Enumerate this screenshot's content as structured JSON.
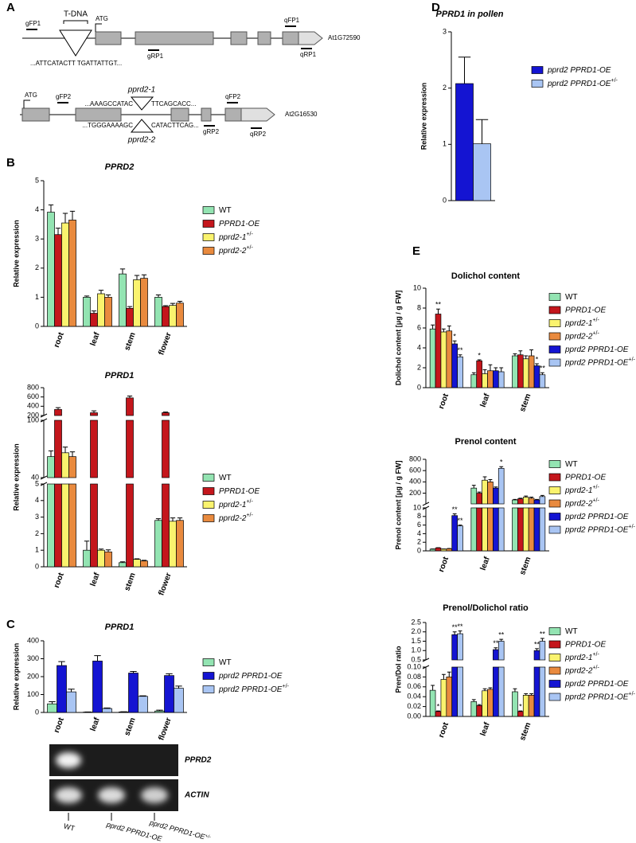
{
  "panels": [
    "A",
    "B",
    "C",
    "D",
    "E"
  ],
  "diagram": {
    "gene1": {
      "id": "At1G72590",
      "insert": "T-DNA",
      "atg": "ATG",
      "primers": [
        "gFP1",
        "gRP1",
        "qFP1",
        "qRP1"
      ],
      "sequence": "...ATTCATACTT  TGATTATTGT..."
    },
    "gene2": {
      "id": "At2G16530",
      "atg": "ATG",
      "primers": [
        "gFP2",
        "gRP2",
        "qFP2",
        "qRP2"
      ],
      "allele1": "pprd2-1",
      "allele2": "pprd2-2",
      "seq1_left": "...AAAGCCATAC",
      "seq1_right": "TTCAGCACC...",
      "seq2_left": "...TGGGAAAAGC",
      "seq2_right": "CATACTTCAG..."
    }
  },
  "gel": {
    "bands": [
      "PPRD2",
      "ACTIN"
    ],
    "lanes": [
      {
        "name": "WT"
      },
      {
        "name": "pprd2 PPRD1-OE"
      },
      {
        "name": "pprd2 PPRD1-OE",
        "name_sup": "+/-"
      }
    ]
  },
  "chart_data": [
    {
      "type": "bar",
      "panel": "B",
      "title": "PPRD2",
      "title_italic": true,
      "ylabel": "Relative expression",
      "categories": [
        "root",
        "leaf",
        "stem",
        "flower"
      ],
      "ylim": [
        0,
        5
      ],
      "yticks": [
        0,
        1,
        2,
        3,
        4,
        5
      ],
      "series": [
        {
          "name": "WT",
          "color": "#93e4b2",
          "values": [
            3.92,
            1.0,
            1.8,
            1.0
          ],
          "errors": [
            0.25,
            0.04,
            0.17,
            0.08
          ]
        },
        {
          "name": "PPRD1-OE",
          "italic": true,
          "color": "#c4161c",
          "values": [
            3.15,
            0.45,
            0.62,
            0.68
          ],
          "errors": [
            0.22,
            0.08,
            0.06,
            0.03
          ]
        },
        {
          "name": "pprd2-1",
          "name_sup": "+/-",
          "italic": true,
          "color": "#faf36e",
          "values": [
            3.55,
            1.12,
            1.6,
            0.72
          ],
          "errors": [
            0.33,
            0.12,
            0.15,
            0.07
          ]
        },
        {
          "name": "pprd2-2",
          "name_sup": "+/-",
          "italic": true,
          "color": "#e98a3e",
          "values": [
            3.65,
            1.0,
            1.65,
            0.8
          ],
          "errors": [
            0.3,
            0.08,
            0.12,
            0.06
          ]
        }
      ]
    },
    {
      "type": "bar",
      "title": "PPRD1",
      "title_italic": true,
      "ylabel": "Relative expression",
      "categories": [
        "root",
        "leaf",
        "stem",
        "flower"
      ],
      "ylim": [
        [
          0,
          5
        ],
        [
          40,
          100
        ],
        [
          200,
          800
        ]
      ],
      "yticks": [
        0,
        1,
        2,
        3,
        4,
        5,
        40,
        100,
        200,
        400,
        600,
        800
      ],
      "series": [
        {
          "name": "WT",
          "color": "#93e4b2",
          "values": [
            62,
            1.0,
            0.25,
            2.8
          ],
          "errors": [
            6,
            0.55,
            0.05,
            0.1
          ]
        },
        {
          "name": "PPRD1-OE",
          "italic": true,
          "color": "#c4161c",
          "values": [
            330,
            260,
            580,
            260
          ],
          "errors": [
            40,
            40,
            40,
            15
          ]
        },
        {
          "name": "pprd2-1",
          "name_sup": "+/-",
          "italic": true,
          "color": "#faf36e",
          "values": [
            66,
            1.0,
            0.45,
            2.75
          ],
          "errors": [
            6,
            0.07,
            0.03,
            0.2
          ]
        },
        {
          "name": "pprd2-2",
          "name_sup": "+/-",
          "italic": true,
          "color": "#e98a3e",
          "values": [
            62,
            0.9,
            0.35,
            2.8
          ],
          "errors": [
            5,
            0.12,
            0.04,
            0.15
          ]
        }
      ]
    },
    {
      "type": "bar",
      "panel": "C",
      "title": "PPRD1",
      "title_italic": true,
      "ylabel": "Relative expression",
      "categories": [
        "root",
        "leaf",
        "stem",
        "flower"
      ],
      "ylim": [
        0,
        400
      ],
      "yticks": [
        0,
        100,
        200,
        300,
        400
      ],
      "series": [
        {
          "name": "WT",
          "color": "#93e4b2",
          "values": [
            48,
            2,
            3,
            8
          ],
          "errors": [
            12,
            1,
            1,
            5
          ]
        },
        {
          "name": "pprd2 PPRD1-OE",
          "italic": true,
          "color": "#1414d2",
          "values": [
            262,
            287,
            220,
            206
          ],
          "errors": [
            22,
            30,
            9,
            10
          ]
        },
        {
          "name": "pprd2 PPRD1-OE",
          "name_sup": "+/-",
          "italic": true,
          "color": "#a9c5f3",
          "values": [
            115,
            22,
            90,
            135
          ],
          "errors": [
            15,
            3,
            3,
            12
          ]
        }
      ]
    },
    {
      "type": "bar",
      "panel": "D",
      "title": "PPRD1 in pollen",
      "title_italic": true,
      "ylabel": "Relative expression",
      "categories": [
        null
      ],
      "ylim": [
        0,
        3
      ],
      "yticks": [
        0,
        1,
        2,
        3
      ],
      "series": [
        {
          "name": "pprd2 PPRD1-OE",
          "italic": true,
          "color": "#1414d2",
          "values": [
            2.08
          ],
          "errors": [
            0.47
          ]
        },
        {
          "name": "pprd2 PPRD1-OE",
          "name_sup": "+/-",
          "italic": true,
          "color": "#a9c5f3",
          "values": [
            1.01
          ],
          "errors": [
            0.43
          ]
        }
      ]
    },
    {
      "type": "bar",
      "panel": "E",
      "title": "Dolichol content",
      "ylabel": "Dolichol content [μg / g FW]",
      "categories": [
        "root",
        "leaf",
        "stem"
      ],
      "ylim": [
        0,
        10
      ],
      "yticks": [
        0,
        2,
        4,
        6,
        8,
        10
      ],
      "series": [
        {
          "name": "WT",
          "color": "#93e4b2",
          "values": [
            5.9,
            1.3,
            3.2
          ],
          "errors": [
            0.4,
            0.2,
            0.2
          ]
        },
        {
          "name": "PPRD1-OE",
          "italic": true,
          "color": "#c4161c",
          "values": [
            7.4,
            2.7,
            3.3
          ],
          "errors": [
            0.5,
            0.1,
            0.4
          ],
          "stars": [
            "**",
            "*",
            null
          ]
        },
        {
          "name": "pprd2-1",
          "name_sup": "+/-",
          "italic": true,
          "color": "#faf36e",
          "values": [
            5.6,
            1.4,
            2.9
          ],
          "errors": [
            0.3,
            0.4,
            0.3
          ]
        },
        {
          "name": "pprd2-2",
          "name_sup": "+/-",
          "italic": true,
          "color": "#e98a3e",
          "values": [
            5.7,
            1.7,
            3.2
          ],
          "errors": [
            0.5,
            0.6,
            0.6
          ]
        },
        {
          "name": "pprd2 PPRD1-OE",
          "italic": true,
          "color": "#1414d2",
          "values": [
            4.4,
            1.7,
            2.2
          ],
          "errors": [
            0.3,
            0.3,
            0.2
          ],
          "stars": [
            "*",
            null,
            "*"
          ]
        },
        {
          "name": "pprd2 PPRD1-OE",
          "name_sup": "+/-",
          "italic": true,
          "color": "#a9c5f3",
          "values": [
            3.1,
            1.6,
            1.3
          ],
          "errors": [
            0.2,
            0.4,
            0.2
          ],
          "stars": [
            "**",
            null,
            "**"
          ]
        }
      ]
    },
    {
      "type": "bar",
      "title": "Prenol content",
      "ylabel": "Prenol content [μg / g FW]",
      "categories": [
        "root",
        "leaf",
        "stem"
      ],
      "ylim": [
        [
          0,
          10
        ],
        [
          10,
          800
        ]
      ],
      "yticks": [
        0,
        2,
        4,
        6,
        8,
        10,
        200,
        400,
        600,
        800
      ],
      "series": [
        {
          "name": "WT",
          "color": "#93e4b2",
          "values": [
            0.4,
            290,
            80
          ],
          "errors": [
            0.05,
            50,
            10
          ]
        },
        {
          "name": "PPRD1-OE",
          "italic": true,
          "color": "#c4161c",
          "values": [
            0.7,
            200,
            100
          ],
          "errors": [
            0.05,
            20,
            10
          ]
        },
        {
          "name": "pprd2-1",
          "name_sup": "+/-",
          "italic": true,
          "color": "#faf36e",
          "values": [
            0.4,
            430,
            130
          ],
          "errors": [
            0.05,
            60,
            20
          ]
        },
        {
          "name": "pprd2-2",
          "name_sup": "+/-",
          "italic": true,
          "color": "#e98a3e",
          "values": [
            0.5,
            400,
            110
          ],
          "errors": [
            0.05,
            40,
            20
          ]
        },
        {
          "name": "pprd2 PPRD1-OE",
          "italic": true,
          "color": "#1414d2",
          "values": [
            8.2,
            290,
            80
          ],
          "errors": [
            0.4,
            20,
            10
          ],
          "stars": [
            "**",
            null,
            null
          ]
        },
        {
          "name": "pprd2 PPRD1-OE",
          "name_sup": "+/-",
          "italic": true,
          "color": "#a9c5f3",
          "values": [
            5.8,
            640,
            140
          ],
          "errors": [
            0.2,
            30,
            20
          ],
          "stars": [
            "**",
            "*",
            null
          ]
        }
      ]
    },
    {
      "type": "bar",
      "title": "Prenol/Dolichol ratio",
      "ylabel": "Pren/Dol ratio",
      "categories": [
        "root",
        "leaf",
        "stem"
      ],
      "ylim": [
        [
          0,
          0.1
        ],
        [
          0.5,
          2.5
        ]
      ],
      "yticks": [
        {
          "value": 0,
          "label": "0.00"
        },
        {
          "value": 0.02,
          "label": "0.02"
        },
        {
          "value": 0.04,
          "label": "0.04"
        },
        {
          "value": 0.06,
          "label": "0.06"
        },
        {
          "value": 0.08,
          "label": "0.08"
        },
        {
          "value": 0.1,
          "label": "0.10"
        },
        0.5,
        {
          "value": 1,
          "label": "1.0"
        },
        1.5,
        {
          "value": 2,
          "label": "2.0"
        },
        2.5
      ],
      "series": [
        {
          "name": "WT",
          "color": "#93e4b2",
          "values": [
            0.053,
            0.03,
            0.05
          ],
          "errors": [
            0.01,
            0.004,
            0.006
          ]
        },
        {
          "name": "PPRD1-OE",
          "italic": true,
          "color": "#c4161c",
          "values": [
            0.01,
            0.022,
            0.01
          ],
          "errors": [
            0.001,
            0.002,
            0.001
          ],
          "stars": [
            "*",
            null,
            "*"
          ]
        },
        {
          "name": "pprd2-1",
          "name_sup": "+/-",
          "italic": true,
          "color": "#faf36e",
          "values": [
            0.075,
            0.052,
            0.043
          ],
          "errors": [
            0.01,
            0.004,
            0.003
          ]
        },
        {
          "name": "pprd2-2",
          "name_sup": "+/-",
          "italic": true,
          "color": "#e98a3e",
          "values": [
            0.08,
            0.055,
            0.043
          ],
          "errors": [
            0.01,
            0.003,
            0.003
          ]
        },
        {
          "name": "pprd2 PPRD1-OE",
          "italic": true,
          "color": "#1414d2",
          "values": [
            1.85,
            1.05,
            1.0
          ],
          "errors": [
            0.15,
            0.1,
            0.1
          ],
          "stars": [
            "**",
            "**",
            "**"
          ]
        },
        {
          "name": "pprd2 PPRD1-OE",
          "name_sup": "+/-",
          "italic": true,
          "color": "#a9c5f3",
          "values": [
            1.9,
            1.5,
            1.5
          ],
          "errors": [
            0.15,
            0.1,
            0.15
          ],
          "stars": [
            "**",
            "**",
            "**"
          ]
        }
      ]
    }
  ]
}
